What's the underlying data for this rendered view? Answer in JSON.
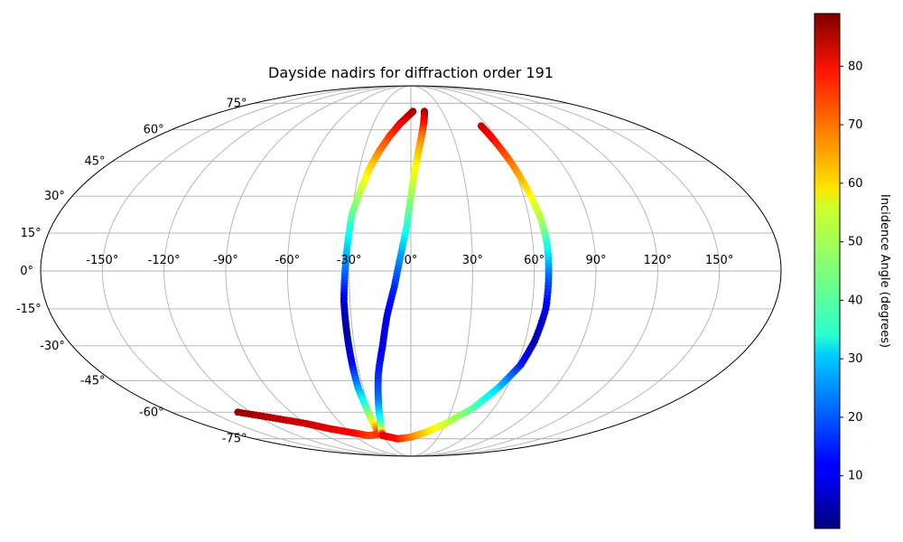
{
  "chart_data": {
    "type": "scatter",
    "projection": "mollweide",
    "title": "Dayside nadirs for diffraction order 191",
    "grid": true,
    "lon_ticks": [
      -150,
      -120,
      -90,
      -60,
      -30,
      0,
      30,
      60,
      90,
      120,
      150
    ],
    "lat_ticks": [
      -75,
      -60,
      -45,
      -30,
      -15,
      0,
      15,
      30,
      45,
      60,
      75
    ],
    "lon_tick_labels": [
      "-150°",
      "-120°",
      "-90°",
      "-60°",
      "-30°",
      "0°",
      "30°",
      "60°",
      "90°",
      "120°",
      "150°"
    ],
    "lat_tick_labels": [
      "-75°",
      "-60°",
      "-45°",
      "-30°",
      "-15°",
      "0°",
      "15°",
      "30°",
      "45°",
      "60°",
      "75°"
    ],
    "colorbar": {
      "label": "Incidence Angle (degrees)",
      "colormap": "jet",
      "range": [
        1,
        89
      ],
      "ticks": [
        10,
        20,
        30,
        40,
        50,
        60,
        70,
        80
      ],
      "tick_labels": [
        "10",
        "20",
        "30",
        "40",
        "50",
        "60",
        "70",
        "80"
      ]
    },
    "series": [
      {
        "points": [
          {
            "lon": 2,
            "lat": 70,
            "c": 86
          },
          {
            "lon": -3,
            "lat": 67,
            "c": 84
          },
          {
            "lon": -9,
            "lat": 63,
            "c": 80
          },
          {
            "lon": -15,
            "lat": 57,
            "c": 74
          },
          {
            "lon": -20,
            "lat": 50,
            "c": 68
          },
          {
            "lon": -24,
            "lat": 42,
            "c": 60
          },
          {
            "lon": -27,
            "lat": 33,
            "c": 52
          },
          {
            "lon": -30,
            "lat": 23,
            "c": 43
          },
          {
            "lon": -31,
            "lat": 12,
            "c": 33
          },
          {
            "lon": -32,
            "lat": 0,
            "c": 22
          },
          {
            "lon": -33,
            "lat": -12,
            "c": 10
          },
          {
            "lon": -33,
            "lat": -24,
            "c": 3
          },
          {
            "lon": -33,
            "lat": -36,
            "c": 10
          },
          {
            "lon": -33,
            "lat": -48,
            "c": 25
          },
          {
            "lon": -32,
            "lat": -58,
            "c": 40
          },
          {
            "lon": -32,
            "lat": -66,
            "c": 55
          },
          {
            "lon": -32,
            "lat": -72,
            "c": 75
          },
          {
            "lon": -45,
            "lat": -73,
            "c": 72
          },
          {
            "lon": -60,
            "lat": -71,
            "c": 78
          },
          {
            "lon": -75,
            "lat": -69,
            "c": 80
          },
          {
            "lon": -90,
            "lat": -66,
            "c": 82
          },
          {
            "lon": -110,
            "lat": -63,
            "c": 84
          },
          {
            "lon": -130,
            "lat": -60,
            "c": 87
          }
        ]
      },
      {
        "points": [
          {
            "lon": 13,
            "lat": 70,
            "c": 86
          },
          {
            "lon": 11,
            "lat": 65,
            "c": 80
          },
          {
            "lon": 8,
            "lat": 58,
            "c": 70
          },
          {
            "lon": 5,
            "lat": 50,
            "c": 62
          },
          {
            "lon": 2,
            "lat": 40,
            "c": 55
          },
          {
            "lon": 0,
            "lat": 30,
            "c": 48
          },
          {
            "lon": -2,
            "lat": 18,
            "c": 38
          },
          {
            "lon": -5,
            "lat": 6,
            "c": 26
          },
          {
            "lon": -8,
            "lat": -6,
            "c": 16
          },
          {
            "lon": -12,
            "lat": -18,
            "c": 10
          },
          {
            "lon": -15,
            "lat": -30,
            "c": 10
          },
          {
            "lon": -19,
            "lat": -42,
            "c": 15
          },
          {
            "lon": -22,
            "lat": -54,
            "c": 22
          },
          {
            "lon": -25,
            "lat": -64,
            "c": 35
          },
          {
            "lon": -28,
            "lat": -70,
            "c": 50
          },
          {
            "lon": -30,
            "lat": -73,
            "c": 80
          },
          {
            "lon": -15,
            "lat": -75,
            "c": 77
          },
          {
            "lon": 0,
            "lat": -74,
            "c": 68
          },
          {
            "lon": 15,
            "lat": -71,
            "c": 60
          },
          {
            "lon": 30,
            "lat": -66,
            "c": 52
          },
          {
            "lon": 45,
            "lat": -58,
            "c": 42
          },
          {
            "lon": 55,
            "lat": -48,
            "c": 30
          },
          {
            "lon": 62,
            "lat": -38,
            "c": 15
          },
          {
            "lon": 65,
            "lat": -28,
            "c": 5
          },
          {
            "lon": 67,
            "lat": -15,
            "c": 10
          },
          {
            "lon": 67,
            "lat": -2,
            "c": 20
          },
          {
            "lon": 67,
            "lat": 10,
            "c": 35
          },
          {
            "lon": 66,
            "lat": 20,
            "c": 48
          },
          {
            "lon": 63,
            "lat": 33,
            "c": 58
          },
          {
            "lon": 60,
            "lat": 45,
            "c": 68
          },
          {
            "lon": 57,
            "lat": 55,
            "c": 76
          },
          {
            "lon": 55,
            "lat": 62,
            "c": 82
          }
        ]
      }
    ]
  }
}
